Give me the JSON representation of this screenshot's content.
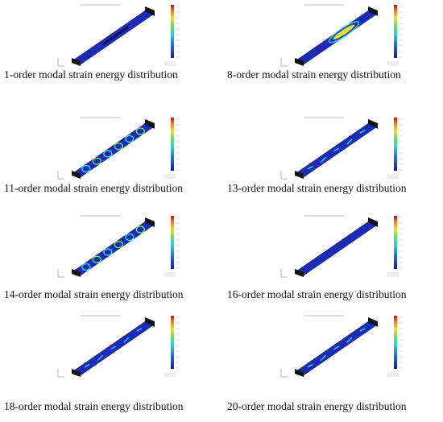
{
  "panels": [
    {
      "caption": "1-order modal strain energy distribution"
    },
    {
      "caption": "8-order modal strain energy distribution"
    },
    {
      "caption": "11-order modal strain energy distribution"
    },
    {
      "caption": "13-order modal strain energy distribution"
    },
    {
      "caption": "14-order modal strain energy distribution"
    },
    {
      "caption": "16-order modal strain energy distribution"
    },
    {
      "caption": "18-order modal strain energy distribution"
    },
    {
      "caption": "20-order modal strain energy distribution"
    }
  ]
}
